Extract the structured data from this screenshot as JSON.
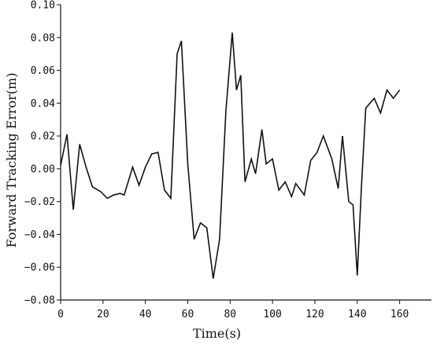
{
  "chart_data": {
    "type": "line",
    "xlabel": "Time(s)",
    "ylabel": "Forward Tracking Error(m)",
    "xlim": [
      0,
      175
    ],
    "ylim": [
      -0.08,
      0.1
    ],
    "xticks": [
      0,
      20,
      40,
      60,
      80,
      100,
      120,
      140,
      160
    ],
    "yticks": [
      -0.08,
      -0.06,
      -0.04,
      -0.02,
      0.0,
      0.02,
      0.04,
      0.06,
      0.08,
      0.1
    ],
    "xtick_labels": [
      "0",
      "20",
      "40",
      "60",
      "80",
      "100",
      "120",
      "140",
      "160"
    ],
    "ytick_labels": [
      "−0.08",
      "−0.06",
      "−0.04",
      "−0.02",
      "0.00",
      "0.02",
      "0.04",
      "0.06",
      "0.08",
      "0.10"
    ],
    "grid": false,
    "line_color": "#111111",
    "series": [
      {
        "x": [
          0,
          3,
          6,
          9,
          12,
          15,
          19,
          22,
          25,
          28,
          30,
          34,
          37,
          40,
          43,
          46,
          49,
          52,
          55,
          57,
          60,
          63,
          66,
          69,
          72,
          75,
          78,
          81,
          83,
          85,
          87,
          90,
          92,
          95,
          97,
          100,
          103,
          106,
          109,
          111,
          115,
          118,
          121,
          124,
          128,
          131,
          133,
          136,
          138,
          140,
          142,
          144,
          148,
          151,
          154,
          157,
          160
        ],
        "y": [
          0.002,
          0.021,
          -0.025,
          0.015,
          0.001,
          -0.011,
          -0.014,
          -0.018,
          -0.016,
          -0.015,
          -0.016,
          0.001,
          -0.01,
          0.001,
          0.009,
          0.01,
          -0.013,
          -0.018,
          0.07,
          0.078,
          0.003,
          -0.043,
          -0.033,
          -0.036,
          -0.067,
          -0.043,
          0.035,
          0.083,
          0.048,
          0.057,
          -0.008,
          0.006,
          -0.003,
          0.024,
          0.003,
          0.006,
          -0.013,
          -0.008,
          -0.017,
          -0.009,
          -0.016,
          0.005,
          0.01,
          0.02,
          0.006,
          -0.012,
          0.02,
          -0.02,
          -0.022,
          -0.065,
          -0.01,
          0.037,
          0.043,
          0.034,
          0.048,
          0.043,
          0.048
        ]
      }
    ]
  }
}
